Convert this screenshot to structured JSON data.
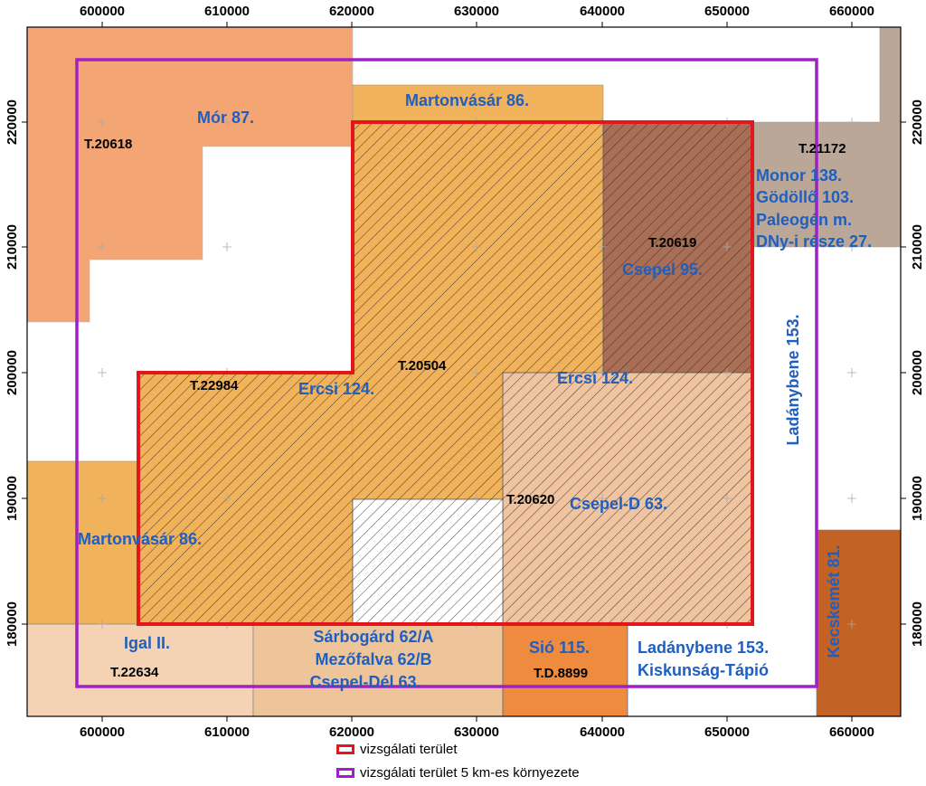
{
  "axes": {
    "x_ticks": [
      "600000",
      "610000",
      "620000",
      "630000",
      "640000",
      "650000",
      "660000"
    ],
    "y_ticks": [
      "220000",
      "210000",
      "200000",
      "190000",
      "180000"
    ]
  },
  "blocks": {
    "mor": {
      "name": "Mór 87.",
      "code": "T.20618"
    },
    "martonvasar_top": {
      "name": "Martonvásár 86."
    },
    "monor": {
      "name_lines": [
        "Monor 138.",
        "Gödöllő 103.",
        "Paleogén m.",
        "DNy-i része 27."
      ],
      "code": "T.21172"
    },
    "csepel": {
      "name": "Csepel 95.",
      "code": "T.20619"
    },
    "ercsi_w": {
      "name": "Ercsi 124.",
      "code": "T.22984"
    },
    "ercsi_center": {
      "code": "T.20504"
    },
    "ercsi_e": {
      "name": "Ercsi 124."
    },
    "csepel_d": {
      "name": "Csepel-D 63.",
      "code": "T.20620"
    },
    "ladanybene_vertical": {
      "name": "Ladánybene 153."
    },
    "martonvasar_bottom": {
      "name": "Martonvásár 86."
    },
    "igal": {
      "name": "Igal II.",
      "code": "T.22634"
    },
    "sarbogard": {
      "name_lines": [
        "Sárbogárd 62/A",
        "Mezőfalva 62/B",
        "Csepel-Dél 63."
      ]
    },
    "sio": {
      "name": "Sió 115.",
      "code": "T.D.8899"
    },
    "ladanybene_bottom": {
      "name_lines": [
        "Ladánybene 153.",
        "Kiskunság-Tápió"
      ]
    },
    "kecskemet": {
      "name": "Kecskemét 81."
    }
  },
  "legend": {
    "study_area": "vizsgálati terület",
    "buffer": "vizsgálati terület 5 km-es környezete"
  },
  "colors": {
    "mor": "#f4a574",
    "martonvasar": "#f0b25a",
    "monor": "#bba797",
    "csepel": "#a86e56",
    "ercsi_east": "#efc4a0",
    "igal": "#f6d2b4",
    "sarbogard": "#eec49a",
    "sio": "#ef8b3e",
    "kecskemet": "#c26224",
    "study_outline": "#e3161b",
    "buffer_outline": "#a020c8",
    "label_blue": "#1f5fc0"
  }
}
